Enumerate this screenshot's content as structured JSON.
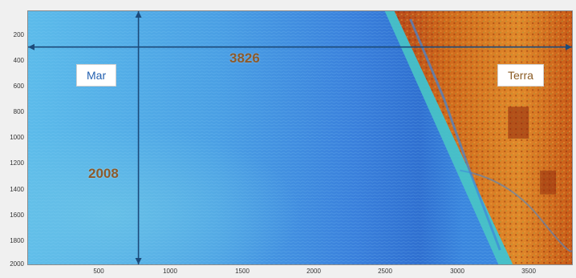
{
  "labels": {
    "sea": "Mar",
    "land": "Terra"
  },
  "dimensions": {
    "width": "3826",
    "height": "2008"
  },
  "axes": {
    "y_ticks": [
      "200",
      "400",
      "600",
      "800",
      "1000",
      "1200",
      "1400",
      "1600",
      "1800",
      "2000"
    ],
    "x_ticks": [
      "500",
      "1000",
      "1500",
      "2000",
      "2500",
      "3000",
      "3500"
    ]
  },
  "colors": {
    "sea_light": "#59b6ea",
    "sea_mid": "#3f8fe0",
    "sea_deep": "#2f6fd0",
    "land_orange": "#d8701a",
    "land_red": "#a8300e",
    "coast_cyan": "#47d0c8",
    "arrow": "#1c4a7a"
  }
}
